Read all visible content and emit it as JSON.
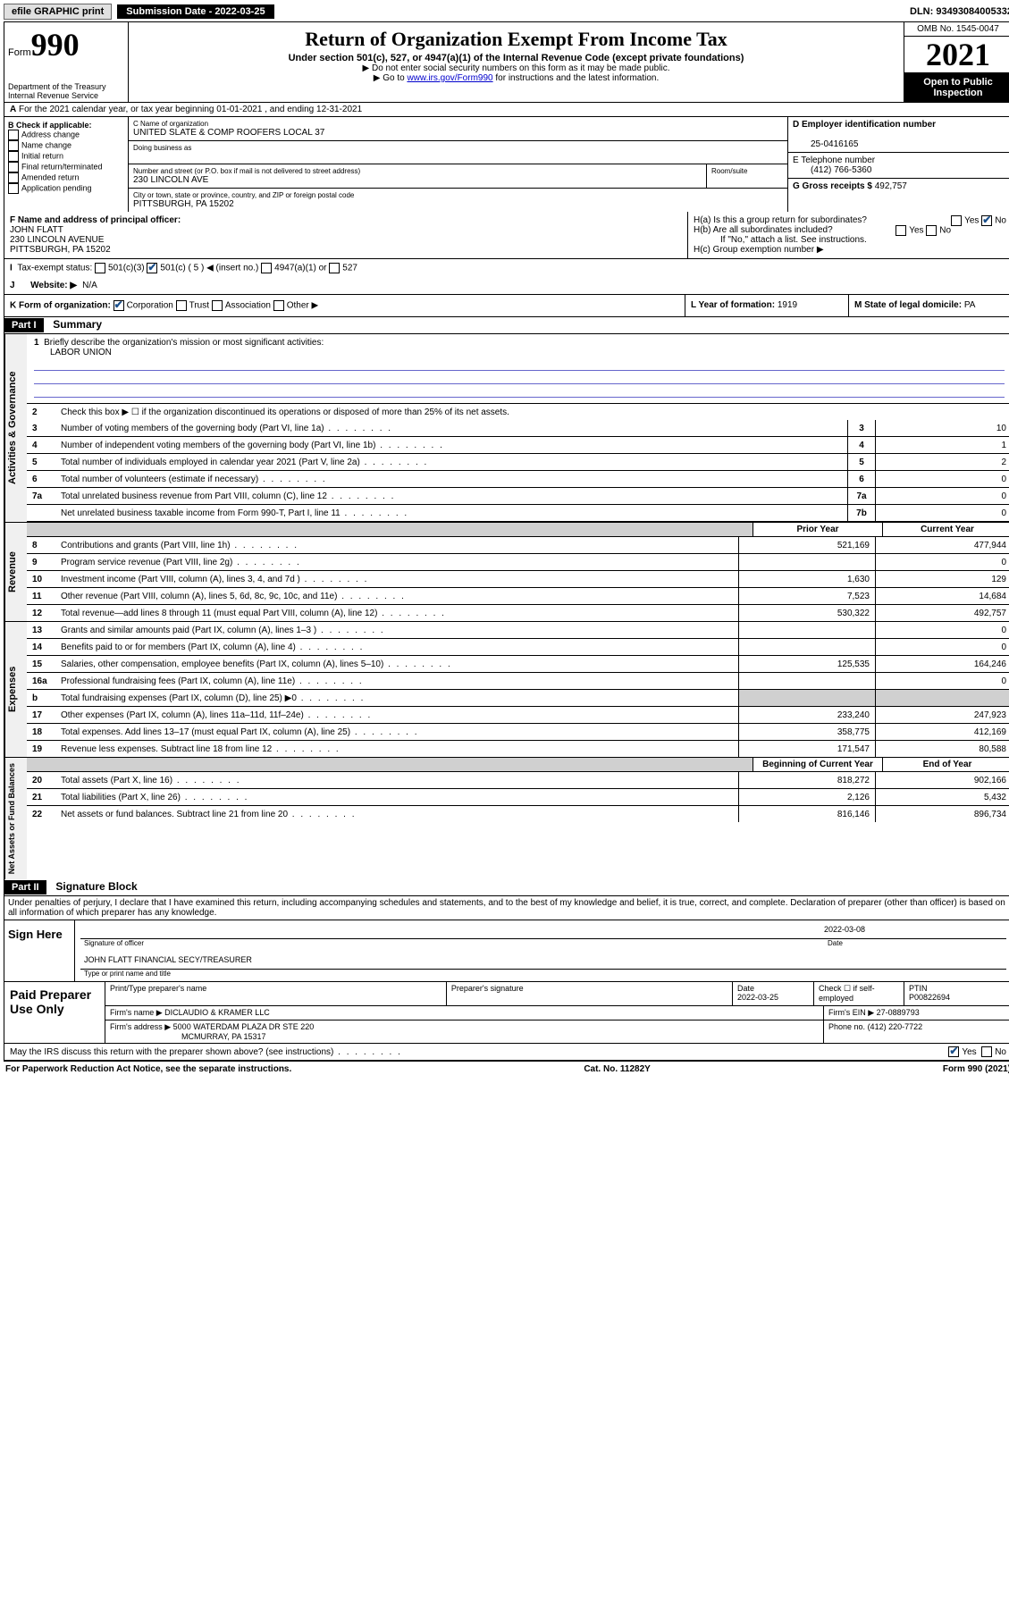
{
  "topbar": {
    "efile": "efile GRAPHIC print",
    "submission_label": "Submission Date - 2022-03-25",
    "dln": "DLN: 93493084005332"
  },
  "header": {
    "form_prefix": "Form",
    "form_number": "990",
    "title": "Return of Organization Exempt From Income Tax",
    "subtitle": "Under section 501(c), 527, or 4947(a)(1) of the Internal Revenue Code (except private foundations)",
    "note1": "▶ Do not enter social security numbers on this form as it may be made public.",
    "note2_pre": "▶ Go to ",
    "note2_link": "www.irs.gov/Form990",
    "note2_post": " for instructions and the latest information.",
    "dept": "Department of the Treasury",
    "irs": "Internal Revenue Service",
    "omb": "OMB No. 1545-0047",
    "year": "2021",
    "inspection": "Open to Public Inspection"
  },
  "A": {
    "text": "For the 2021 calendar year, or tax year beginning 01-01-2021   , and ending 12-31-2021"
  },
  "B": {
    "heading": "B Check if applicable:",
    "opts": [
      "Address change",
      "Name change",
      "Initial return",
      "Final return/terminated",
      "Amended return",
      "Application pending"
    ]
  },
  "C": {
    "name_label": "C Name of organization",
    "name": "UNITED SLATE & COMP ROOFERS LOCAL 37",
    "dba_label": "Doing business as",
    "addr_label": "Number and street (or P.O. box if mail is not delivered to street address)",
    "room_label": "Room/suite",
    "addr": "230 LINCOLN AVE",
    "city_label": "City or town, state or province, country, and ZIP or foreign postal code",
    "city": "PITTSBURGH, PA  15202"
  },
  "D": {
    "label": "D Employer identification number",
    "value": "25-0416165"
  },
  "E": {
    "label": "E Telephone number",
    "value": "(412) 766-5360"
  },
  "G": {
    "label": "G Gross receipts $",
    "value": "492,757"
  },
  "F": {
    "label": "F  Name and address of principal officer:",
    "name": "JOHN FLATT",
    "addr1": "230 LINCOLN AVENUE",
    "addr2": "PITTSBURGH, PA  15202"
  },
  "H": {
    "a": "H(a)  Is this a group return for subordinates?",
    "b": "H(b)  Are all subordinates included?",
    "b_note": "If \"No,\" attach a list. See instructions.",
    "c": "H(c)  Group exemption number ▶",
    "yes": "Yes",
    "no": "No"
  },
  "I": {
    "label": "Tax-exempt status:",
    "opts": [
      "501(c)(3)",
      "501(c) ( 5 ) ◀ (insert no.)",
      "4947(a)(1) or",
      "527"
    ]
  },
  "J": {
    "label": "Website: ▶",
    "value": "N/A"
  },
  "K": {
    "label": "K Form of organization:",
    "opts": [
      "Corporation",
      "Trust",
      "Association",
      "Other ▶"
    ]
  },
  "L": {
    "label": "L Year of formation:",
    "value": "1919"
  },
  "M": {
    "label": "M State of legal domicile:",
    "value": "PA"
  },
  "partI": {
    "header": "Part I",
    "title": "Summary",
    "line1_label": "Briefly describe the organization's mission or most significant activities:",
    "mission": "LABOR UNION",
    "line2": "Check this box ▶ ☐  if the organization discontinued its operations or disposed of more than 25% of its net assets.",
    "sections": {
      "gov": "Activities & Governance",
      "rev": "Revenue",
      "exp": "Expenses",
      "net": "Net Assets or Fund Balances"
    },
    "col_prior": "Prior Year",
    "col_current": "Current Year",
    "col_begin": "Beginning of Current Year",
    "col_end": "End of Year",
    "lines_top": [
      {
        "n": "3",
        "d": "Number of voting members of the governing body (Part VI, line 1a)",
        "box": "3",
        "v": "10"
      },
      {
        "n": "4",
        "d": "Number of independent voting members of the governing body (Part VI, line 1b)",
        "box": "4",
        "v": "1"
      },
      {
        "n": "5",
        "d": "Total number of individuals employed in calendar year 2021 (Part V, line 2a)",
        "box": "5",
        "v": "2"
      },
      {
        "n": "6",
        "d": "Total number of volunteers (estimate if necessary)",
        "box": "6",
        "v": "0"
      },
      {
        "n": "7a",
        "d": "Total unrelated business revenue from Part VIII, column (C), line 12",
        "box": "7a",
        "v": "0"
      },
      {
        "n": "",
        "d": "Net unrelated business taxable income from Form 990-T, Part I, line 11",
        "box": "7b",
        "v": "0"
      }
    ],
    "lines_rev": [
      {
        "n": "8",
        "d": "Contributions and grants (Part VIII, line 1h)",
        "p": "521,169",
        "c": "477,944"
      },
      {
        "n": "9",
        "d": "Program service revenue (Part VIII, line 2g)",
        "p": "",
        "c": "0"
      },
      {
        "n": "10",
        "d": "Investment income (Part VIII, column (A), lines 3, 4, and 7d )",
        "p": "1,630",
        "c": "129"
      },
      {
        "n": "11",
        "d": "Other revenue (Part VIII, column (A), lines 5, 6d, 8c, 9c, 10c, and 11e)",
        "p": "7,523",
        "c": "14,684"
      },
      {
        "n": "12",
        "d": "Total revenue—add lines 8 through 11 (must equal Part VIII, column (A), line 12)",
        "p": "530,322",
        "c": "492,757"
      }
    ],
    "lines_exp": [
      {
        "n": "13",
        "d": "Grants and similar amounts paid (Part IX, column (A), lines 1–3 )",
        "p": "",
        "c": "0"
      },
      {
        "n": "14",
        "d": "Benefits paid to or for members (Part IX, column (A), line 4)",
        "p": "",
        "c": "0"
      },
      {
        "n": "15",
        "d": "Salaries, other compensation, employee benefits (Part IX, column (A), lines 5–10)",
        "p": "125,535",
        "c": "164,246"
      },
      {
        "n": "16a",
        "d": "Professional fundraising fees (Part IX, column (A), line 11e)",
        "p": "",
        "c": "0"
      },
      {
        "n": "b",
        "d": "Total fundraising expenses (Part IX, column (D), line 25) ▶0",
        "p": "shaded",
        "c": "shaded"
      },
      {
        "n": "17",
        "d": "Other expenses (Part IX, column (A), lines 11a–11d, 11f–24e)",
        "p": "233,240",
        "c": "247,923"
      },
      {
        "n": "18",
        "d": "Total expenses. Add lines 13–17 (must equal Part IX, column (A), line 25)",
        "p": "358,775",
        "c": "412,169"
      },
      {
        "n": "19",
        "d": "Revenue less expenses. Subtract line 18 from line 12",
        "p": "171,547",
        "c": "80,588"
      }
    ],
    "lines_net": [
      {
        "n": "20",
        "d": "Total assets (Part X, line 16)",
        "p": "818,272",
        "c": "902,166"
      },
      {
        "n": "21",
        "d": "Total liabilities (Part X, line 26)",
        "p": "2,126",
        "c": "5,432"
      },
      {
        "n": "22",
        "d": "Net assets or fund balances. Subtract line 21 from line 20",
        "p": "816,146",
        "c": "896,734"
      }
    ]
  },
  "partII": {
    "header": "Part II",
    "title": "Signature Block",
    "declaration": "Under penalties of perjury, I declare that I have examined this return, including accompanying schedules and statements, and to the best of my knowledge and belief, it is true, correct, and complete. Declaration of preparer (other than officer) is based on all information of which preparer has any knowledge."
  },
  "sign": {
    "label": "Sign Here",
    "sig_officer": "Signature of officer",
    "date_label": "Date",
    "date": "2022-03-08",
    "name": "JOHN FLATT FINANCIAL SECY/TREASURER",
    "name_label": "Type or print name and title"
  },
  "paid": {
    "label": "Paid Preparer Use Only",
    "h1": "Print/Type preparer's name",
    "h2": "Preparer's signature",
    "h3": "Date",
    "h3v": "2022-03-25",
    "h4": "Check ☐ if self-employed",
    "h5": "PTIN",
    "ptin": "P00822694",
    "firm_name_label": "Firm's name    ▶",
    "firm_name": "DICLAUDIO & KRAMER LLC",
    "firm_ein_label": "Firm's EIN ▶",
    "firm_ein": "27-0889793",
    "firm_addr_label": "Firm's address ▶",
    "firm_addr1": "5000 WATERDAM PLAZA DR STE 220",
    "firm_addr2": "MCMURRAY, PA  15317",
    "phone_label": "Phone no.",
    "phone": "(412) 220-7722"
  },
  "may_discuss": "May the IRS discuss this return with the preparer shown above? (see instructions)",
  "footer": {
    "left": "For Paperwork Reduction Act Notice, see the separate instructions.",
    "mid": "Cat. No. 11282Y",
    "right_pre": "Form ",
    "right_form": "990",
    "right_post": " (2021)"
  }
}
